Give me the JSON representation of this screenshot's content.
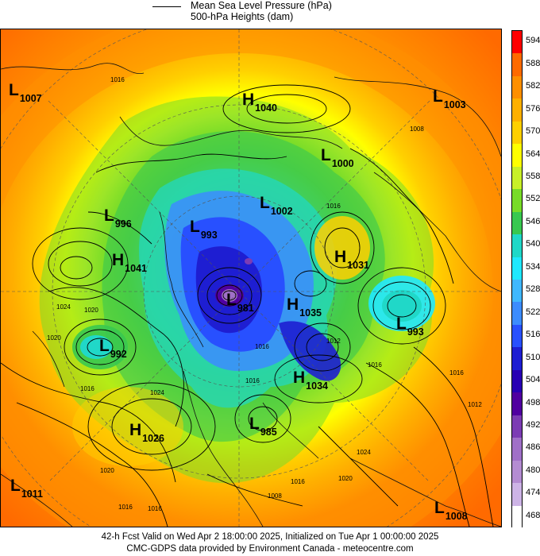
{
  "legend": {
    "line1": "Mean Sea Level Pressure (hPa)",
    "line2": "500-hPa Heights (dam)"
  },
  "scale": {
    "labels": [
      "594",
      "588",
      "582",
      "576",
      "570",
      "564",
      "558",
      "552",
      "546",
      "540",
      "534",
      "528",
      "522",
      "516",
      "510",
      "504",
      "498",
      "492",
      "486",
      "480",
      "474",
      "468"
    ],
    "colors": [
      "#ff0000",
      "#ff6a00",
      "#ff8f00",
      "#ffb000",
      "#ffd000",
      "#ffff00",
      "#c8f028",
      "#78dc28",
      "#38c850",
      "#20d8c8",
      "#20e8ff",
      "#40b8ff",
      "#3c8cff",
      "#2850ff",
      "#1e1ed2",
      "#2800b4",
      "#5000a0",
      "#7c3cb4",
      "#a070c8",
      "#b48cd2",
      "#cdb4e6",
      "#ffffff"
    ]
  },
  "centers": [
    {
      "type": "L",
      "value": "1007"
    },
    {
      "type": "H",
      "value": "1040"
    },
    {
      "type": "L",
      "value": "1003"
    },
    {
      "type": "L",
      "value": "1000"
    },
    {
      "type": "L",
      "value": "1002"
    },
    {
      "type": "L",
      "value": "996"
    },
    {
      "type": "L",
      "value": "993"
    },
    {
      "type": "H",
      "value": "1031"
    },
    {
      "type": "H",
      "value": "1041"
    },
    {
      "type": "L",
      "value": "981"
    },
    {
      "type": "H",
      "value": "1035"
    },
    {
      "type": "L",
      "value": "993"
    },
    {
      "type": "L",
      "value": "992"
    },
    {
      "type": "H",
      "value": "1034"
    },
    {
      "type": "H",
      "value": "1026"
    },
    {
      "type": "L",
      "value": "985"
    },
    {
      "type": "L",
      "value": "1011"
    },
    {
      "type": "L",
      "value": "1008"
    }
  ],
  "isobar_labels": [
    "1016",
    "1008",
    "1016",
    "1024",
    "1020",
    "1020",
    "1016",
    "1024",
    "1016",
    "1016",
    "1012",
    "1016",
    "1012",
    "1016",
    "1024",
    "1020",
    "1016",
    "1016",
    "1008",
    "1016",
    "1020"
  ],
  "footer": {
    "line1": "42-h Fcst Valid on Wed Apr  2 18:00:00 2025, Initialized on Tue Apr  1 00:00:00 2025",
    "line2": "CMC-GDPS data provided by Environment Canada - meteocentre.com"
  }
}
